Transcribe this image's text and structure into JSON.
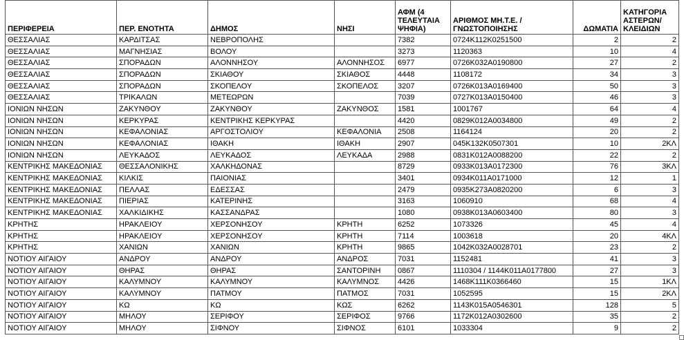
{
  "columns": [
    "ΠΕΡΙΦΕΡΕΙΑ",
    "ΠΕΡ. ΕΝΟΤΗΤΑ",
    "ΔΗΜΟΣ",
    "ΝΗΣΙ",
    "ΑΦΜ (4 ΤΕΛΕΥΤΑΙΑ ΨΗΦΙΑ)",
    "ΑΡΙΘΜΟΣ ΜΗ.Τ.Ε. / ΓΝΩΣΤΟΠΟΙΗΣΗΣ",
    "ΔΩΜΑΤΙΑ",
    "ΚΑΤΗΓΟΡΙΑ ΑΣΤΕΡΩΝ/ ΚΛΕΙΔΙΩΝ"
  ],
  "rows": [
    [
      "ΘΕΣΣΑΛΙΑΣ",
      "ΚΑΡΔΙΤΣΑΣ",
      "ΝΕΒΡΟΠΟΛΗΣ",
      "",
      "7382",
      "0724K112K0251500",
      "2",
      "2"
    ],
    [
      "ΘΕΣΣΑΛΙΑΣ",
      "ΜΑΓΝΗΣΙΑΣ",
      "ΒΟΛΟΥ",
      "",
      "3273",
      "1120363",
      "10",
      "4"
    ],
    [
      "ΘΕΣΣΑΛΙΑΣ",
      "ΣΠΟΡΑΔΩΝ",
      "ΑΛΟΝΝΗΣΟΥ",
      "ΑΛΟΝΝΗΣΟΣ",
      "6977",
      "0726K032A0190800",
      "27",
      "2"
    ],
    [
      "ΘΕΣΣΑΛΙΑΣ",
      "ΣΠΟΡΑΔΩΝ",
      "ΣΚΙΑΘΟΥ",
      "ΣΚΙΑΘΟΣ",
      "4448",
      "1108172",
      "34",
      "3"
    ],
    [
      "ΘΕΣΣΑΛΙΑΣ",
      "ΣΠΟΡΑΔΩΝ",
      "ΣΚΟΠΕΛΟΥ",
      "ΣΚΟΠΕΛΟΣ",
      "3207",
      "0726K013A0169400",
      "50",
      "3"
    ],
    [
      "ΘΕΣΣΑΛΙΑΣ",
      "ΤΡΙΚΑΛΩΝ",
      "ΜΕΤΕΩΡΩΝ",
      "",
      "7039",
      "0727K013A0150400",
      "46",
      "3"
    ],
    [
      "ΙΟΝΙΩΝ ΝΗΣΩΝ",
      "ΖΑΚΥΝΘΟΥ",
      "ΖΑΚΥΝΘΟΥ",
      "ΖΑΚΥΝΘΟΣ",
      "1581",
      "1001767",
      "64",
      "4"
    ],
    [
      "ΙΟΝΙΩΝ ΝΗΣΩΝ",
      "ΚΕΡΚΥΡΑΣ",
      "ΚΕΝΤΡΙΚΗΣ ΚΕΡΚΥΡΑΣ",
      "",
      "4420",
      "0829K012A0034800",
      "49",
      "2"
    ],
    [
      "ΙΟΝΙΩΝ ΝΗΣΩΝ",
      "ΚΕΦΑΛΟΝΙΑΣ",
      "ΑΡΓΟΣΤΟΛΙΟΥ",
      "ΚΕΦΑΛΟΝΙΑ",
      "2508",
      "1164124",
      "20",
      "2"
    ],
    [
      "ΙΟΝΙΩΝ ΝΗΣΩΝ",
      "ΚΕΦΑΛΟΝΙΑΣ",
      "ΙΘΑΚΗ",
      "ΙΘΑΚΗ",
      "2907",
      "045K132K0507301",
      "10",
      "2ΚΛ"
    ],
    [
      "ΙΟΝΙΩΝ ΝΗΣΩΝ",
      "ΛΕΥΚΑΔΟΣ",
      "ΛΕΥΚΑΔΟΣ",
      "ΛΕΥΚΑΔΑ",
      "2988",
      "0831K012A0088200",
      "22",
      "2"
    ],
    [
      "ΚΕΝΤΡΙΚΗΣ ΜΑΚΕΔΟΝΙΑΣ",
      "ΘΕΣΣΑΛΟΝΙΚΗΣ",
      "ΧΑΛΚΗΔΟΝΑΣ",
      "",
      "8729",
      "0933K013A0172300",
      "76",
      "3ΚΛ"
    ],
    [
      "ΚΕΝΤΡΙΚΗΣ ΜΑΚΕΔΟΝΙΑΣ",
      "ΚΙΛΚΙΣ",
      "ΠΑΙΟΝΙΑΣ",
      "",
      "3401",
      "0934K011A0171000",
      "12",
      "1"
    ],
    [
      "ΚΕΝΤΡΙΚΗΣ ΜΑΚΕΔΟΝΙΑΣ",
      "ΠΕΛΛΑΣ",
      "ΕΔΕΣΣΑΣ",
      "",
      "2479",
      "0935K273A0820200",
      "6",
      "3"
    ],
    [
      "ΚΕΝΤΡΙΚΗΣ ΜΑΚΕΔΟΝΙΑΣ",
      "ΠΙΕΡΙΑΣ",
      "ΚΑΤΕΡΙΝΗΣ",
      "",
      "3163",
      "1060910",
      "68",
      "4"
    ],
    [
      "ΚΕΝΤΡΙΚΗΣ ΜΑΚΕΔΟΝΙΑΣ",
      "ΧΑΛΚΙΔΙΚΗΣ",
      "ΚΑΣΣΑΝΔΡΑΣ",
      "",
      "1080",
      "0938K013A0603400",
      "80",
      "3"
    ],
    [
      "ΚΡΗΤΗΣ",
      "ΗΡΑΚΛΕΙΟΥ",
      "ΧΕΡΣΟΝΗΣΟΥ",
      "ΚΡΗΤΗ",
      "6252",
      "1073326",
      "45",
      "4"
    ],
    [
      "ΚΡΗΤΗΣ",
      "ΗΡΑΚΛΕΙΟΥ",
      "ΧΕΡΣΟΝΗΣΟΥ",
      "ΚΡΗΤΗ",
      "7114",
      "1003618",
      "20",
      "4ΚΛ"
    ],
    [
      "ΚΡΗΤΗΣ",
      "ΧΑΝΙΩΝ",
      "ΧΑΝΙΩΝ",
      "ΚΡΗΤΗ",
      "9865",
      "1042K032A0028701",
      "23",
      "2"
    ],
    [
      "ΝΟΤΙΟΥ ΑΙΓΑΙΟΥ",
      "ΑΝΔΡΟΥ",
      "ΑΝΔΡΟΥ",
      "ΑΝΔΡΟΣ",
      "7031",
      "1152481",
      "41",
      "3"
    ],
    [
      "ΝΟΤΙΟΥ ΑΙΓΑΙΟΥ",
      "ΘΗΡΑΣ",
      "ΘΗΡΑΣ",
      "ΣΑΝΤΟΡΙΝΗ",
      "0867",
      "1110304 / 1144K011A0177800",
      "27",
      "3"
    ],
    [
      "ΝΟΤΙΟΥ ΑΙΓΑΙΟΥ",
      "ΚΑΛΥΜΝΟΥ",
      "ΚΑΛΥΜΝΟΥ",
      "ΚΑΛΥΜΝΟΣ",
      "4426",
      "1468K111K0366460",
      "15",
      "1ΚΛ"
    ],
    [
      "ΝΟΤΙΟΥ ΑΙΓΑΙΟΥ",
      "ΚΑΛΥΜΝΟΥ",
      "ΠΑΤΜΟΥ",
      "ΠΑΤΜΟΣ",
      "7031",
      "1052595",
      "15",
      "2ΚΛ"
    ],
    [
      "ΝΟΤΙΟΥ ΑΙΓΑΙΟΥ",
      "ΚΩ",
      "ΚΩ",
      "ΚΩΣ",
      "6262",
      "1143K015A0546301",
      "128",
      "5"
    ],
    [
      "ΝΟΤΙΟΥ ΑΙΓΑΙΟΥ",
      "ΜΗΛΟΥ",
      "ΣΕΡΙΦΟΥ",
      "ΣΕΡΙΦΟΣ",
      "9766",
      "1172K012A0302600",
      "35",
      "2"
    ],
    [
      "ΝΟΤΙΟΥ ΑΙΓΑΙΟΥ",
      "ΜΗΛΟΥ",
      "ΣΙΦΝΟΥ",
      "ΣΙΦΝΟΣ",
      "6101",
      "1033304",
      "9",
      "2"
    ]
  ]
}
